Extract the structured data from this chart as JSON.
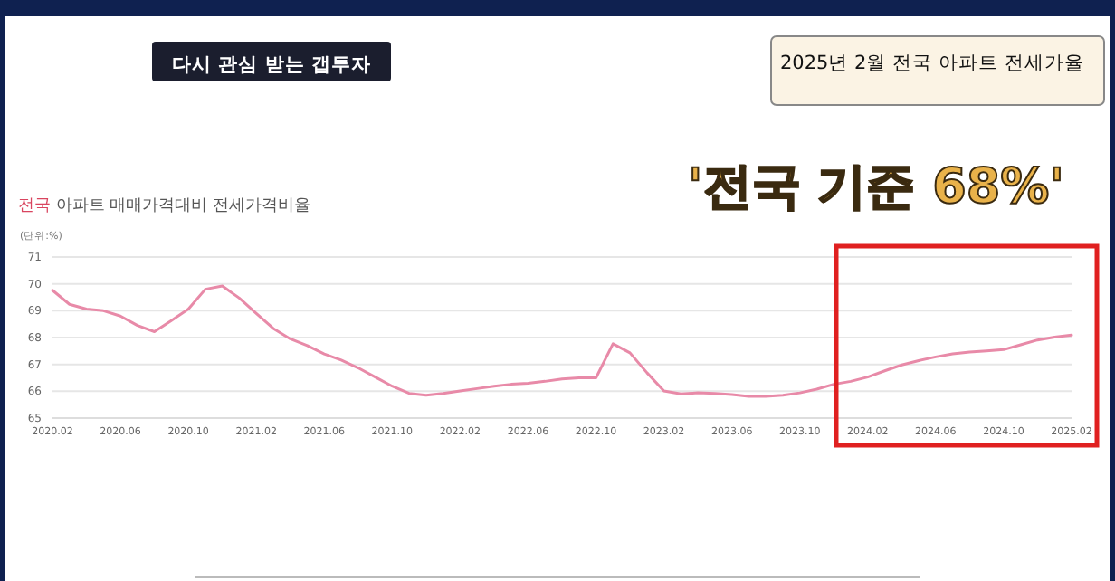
{
  "chart_data": {
    "type": "line",
    "title": "2025년 2월 전국 아파트 전세가율",
    "subtitle": "전국 아파트 매매가격대비 전세가격비율",
    "ylabel": "(단위:%)",
    "annotations": [
      "다시 관심 받는 갭투자",
      "'전국 기준 68%'"
    ],
    "x": [
      "2020-02",
      "2020-03",
      "2020-04",
      "2020-05",
      "2020-06",
      "2020-07",
      "2020-08",
      "2020-09",
      "2020-10",
      "2020-11",
      "2020-12",
      "2021-01",
      "2021-02",
      "2021-03",
      "2021-04",
      "2021-05",
      "2021-06",
      "2021-07",
      "2021-08",
      "2021-09",
      "2021-10",
      "2021-11",
      "2021-12",
      "2022-01",
      "2022-02",
      "2022-03",
      "2022-04",
      "2022-05",
      "2022-06",
      "2022-07",
      "2022-08",
      "2022-09",
      "2022-10",
      "2022-11",
      "2022-12",
      "2023-01",
      "2023-02",
      "2023-03",
      "2023-04",
      "2023-05",
      "2023-06",
      "2023-07",
      "2023-08",
      "2023-09",
      "2023-10",
      "2023-11",
      "2023-12",
      "2024-01",
      "2024-02",
      "2024-03",
      "2024-04",
      "2024-05",
      "2024-06",
      "2024-07",
      "2024-08",
      "2024-09",
      "2024-10",
      "2024-11",
      "2024-12",
      "2025-01",
      "2025-02"
    ],
    "series": [
      {
        "color": "#e88aa8",
        "values": [
          69.76,
          69.24,
          69.06,
          69.0,
          68.8,
          68.45,
          68.22,
          68.63,
          69.06,
          69.8,
          69.92,
          69.47,
          68.9,
          68.34,
          67.95,
          67.7,
          67.39,
          67.16,
          66.87,
          66.53,
          66.19,
          65.92,
          65.85,
          65.92,
          66.01,
          66.1,
          66.19,
          66.26,
          66.3,
          66.37,
          66.46,
          66.5,
          66.5,
          67.77,
          67.43,
          66.69,
          66.01,
          65.9,
          65.94,
          65.92,
          65.88,
          65.81,
          65.81,
          65.85,
          65.94,
          66.08,
          66.26,
          66.37,
          66.53,
          66.76,
          66.98,
          67.14,
          67.28,
          67.39,
          67.46,
          67.5,
          67.55,
          67.73,
          67.91,
          68.02,
          68.09
        ]
      }
    ],
    "xlim": [
      "2020-02",
      "2025-02"
    ],
    "xticks": [
      {
        "value": "2020-02",
        "label": "2020.02"
      },
      {
        "value": "2020-06",
        "label": "2020.06"
      },
      {
        "value": "2020-10",
        "label": "2020.10"
      },
      {
        "value": "2021-02",
        "label": "2021.02"
      },
      {
        "value": "2021-06",
        "label": "2021.06"
      },
      {
        "value": "2021-10",
        "label": "2021.10"
      },
      {
        "value": "2022-02",
        "label": "2022.02"
      },
      {
        "value": "2022-06",
        "label": "2022.06"
      },
      {
        "value": "2022-10",
        "label": "2022.10"
      },
      {
        "value": "2023-02",
        "label": "2023.02"
      },
      {
        "value": "2023-06",
        "label": "2023.06"
      },
      {
        "value": "2023-10",
        "label": "2023.10"
      },
      {
        "value": "2024-02",
        "label": "2024.02"
      },
      {
        "value": "2024-06",
        "label": "2024.06"
      },
      {
        "value": "2024-10",
        "label": "2024.10"
      },
      {
        "value": "2025-02",
        "label": "2025.02"
      }
    ],
    "ylim": [
      65,
      71
    ],
    "yticks": [
      65,
      66,
      67,
      68,
      69,
      70,
      71
    ],
    "grid": "y"
  }
}
